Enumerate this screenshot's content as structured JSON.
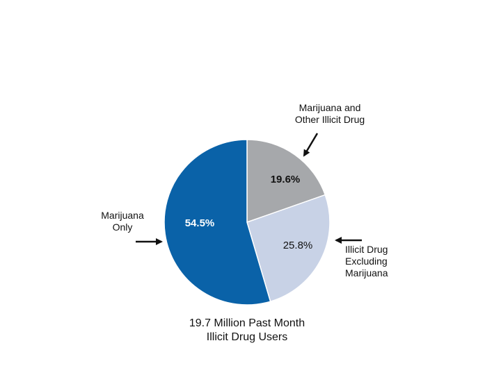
{
  "chart_data": {
    "type": "pie",
    "title": "",
    "caption_lines": [
      "19.7 Million Past Month",
      "Illicit Drug Users"
    ],
    "slices": [
      {
        "label": "Marijuana and Other Illicit Drug",
        "label_lines": [
          "Marijuana and",
          "Other Illicit Drug"
        ],
        "value": 19.6,
        "display": "19.6%",
        "color": "#a6a8ab",
        "label_color": "#111111",
        "bold": true
      },
      {
        "label": "Illicit Drug Excluding Marijuana",
        "label_lines": [
          "Illicit Drug",
          "Excluding",
          "Marijuana"
        ],
        "value": 25.8,
        "display": "25.8%",
        "color": "#c8d2e6",
        "label_color": "#111111",
        "bold": false
      },
      {
        "label": "Marijuana Only",
        "label_lines": [
          "Marijuana",
          "Only"
        ],
        "value": 54.5,
        "display": "54.5%",
        "color": "#0a62a8",
        "label_color": "#ffffff",
        "bold": true
      }
    ]
  }
}
